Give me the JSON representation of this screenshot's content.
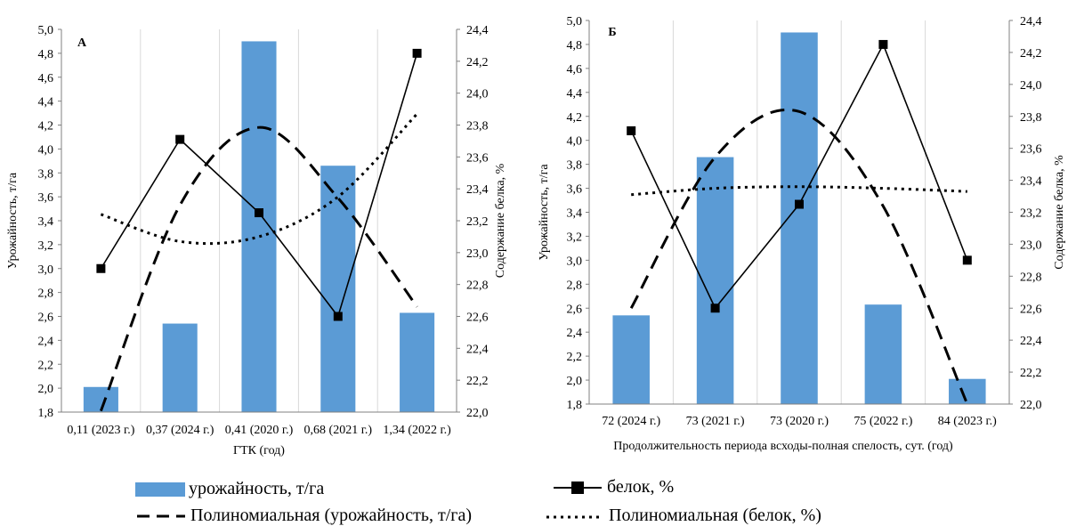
{
  "colors": {
    "bar": "#5b9bd5",
    "line": "#000000"
  },
  "chart_data": [
    {
      "type": "bar+line",
      "panel_label": "А",
      "xlabel": "ГТК (год)",
      "ylabel": "Урожайность, т/га",
      "y2label": "Содержание белка, %",
      "categories": [
        "0,11 (2023 г.)",
        "0,37 (2024 г.)",
        "0,41 (2020 г.)",
        "0,68 (2021 г.)",
        "1,34 (2022 г.)"
      ],
      "ylim": [
        1.8,
        5.0
      ],
      "y2lim": [
        22.0,
        24.4
      ],
      "yticks": [
        "1,8",
        "2,0",
        "2,2",
        "2,4",
        "2,6",
        "2,8",
        "3,0",
        "3,2",
        "3,4",
        "3,6",
        "3,8",
        "4,0",
        "4,2",
        "4,4",
        "4,6",
        "4,8",
        "5,0"
      ],
      "y2ticks": [
        "22,0",
        "22,2",
        "22,4",
        "22,6",
        "22,8",
        "23,0",
        "23,2",
        "23,4",
        "23,6",
        "23,8",
        "24,0",
        "24,2",
        "24,4"
      ],
      "series": [
        {
          "name": "урожайность, т/га",
          "type": "bar",
          "axis": "left",
          "values": [
            2.01,
            2.54,
            4.9,
            3.86,
            2.63
          ]
        },
        {
          "name": "белок, %",
          "type": "line",
          "axis": "right",
          "values": [
            22.9,
            23.71,
            23.25,
            22.6,
            24.25
          ]
        }
      ],
      "trendlines": [
        {
          "name": "Полиномиальная (урожайность, т/га)",
          "style": "dashed",
          "axis": "left",
          "values": [
            1.81,
            3.53,
            4.18,
            3.59,
            2.68
          ]
        },
        {
          "name": "Полиномиальная (белок, %)",
          "style": "dotted",
          "axis": "right",
          "values": [
            23.24,
            23.07,
            23.1,
            23.35,
            23.87
          ]
        }
      ],
      "grid": "vertical"
    },
    {
      "type": "bar+line",
      "panel_label": "Б",
      "xlabel": "Продолжительность периода всходы-полная спелость, сут. (год)",
      "ylabel": "Урожайность, т/га",
      "y2label": "Содержание белка, %",
      "categories": [
        "72 (2024 г.)",
        "73 (2021 г.)",
        "73 (2020 г.)",
        "75 (2022 г.)",
        "84 (2023 г.)"
      ],
      "ylim": [
        1.8,
        5.0
      ],
      "y2lim": [
        22.0,
        24.4
      ],
      "yticks": [
        "1,8",
        "2,0",
        "2,2",
        "2,4",
        "2,6",
        "2,8",
        "3,0",
        "3,2",
        "3,4",
        "3,6",
        "3,8",
        "4,0",
        "4,2",
        "4,4",
        "4,6",
        "4,8",
        "5,0"
      ],
      "y2ticks": [
        "22,0",
        "22,2",
        "22,4",
        "22,6",
        "22,8",
        "23,0",
        "23,2",
        "23,4",
        "23,6",
        "23,8",
        "24,0",
        "24,2",
        "24,4"
      ],
      "series": [
        {
          "name": "урожайность, т/га",
          "type": "bar",
          "axis": "left",
          "values": [
            2.54,
            3.86,
            4.9,
            2.63,
            2.01
          ]
        },
        {
          "name": "белок, %",
          "type": "line",
          "axis": "right",
          "values": [
            23.71,
            22.6,
            23.25,
            24.25,
            22.9
          ]
        }
      ],
      "trendlines": [
        {
          "name": "Полиномиальная (урожайность, т/га)",
          "style": "dashed",
          "axis": "left",
          "values": [
            2.6,
            3.86,
            4.24,
            3.45,
            1.8
          ]
        },
        {
          "name": "Полиномиальная (белок, %)",
          "style": "dotted",
          "axis": "right",
          "values": [
            23.31,
            23.35,
            23.36,
            23.35,
            23.33
          ]
        }
      ],
      "grid": "vertical"
    }
  ],
  "legend": {
    "bar_label": "урожайность, т/га",
    "line_label": "белок, %",
    "dash_label": "Полиномиальная (урожайность, т/га)",
    "dot_label": "Полиномиальная (белок, %)"
  }
}
